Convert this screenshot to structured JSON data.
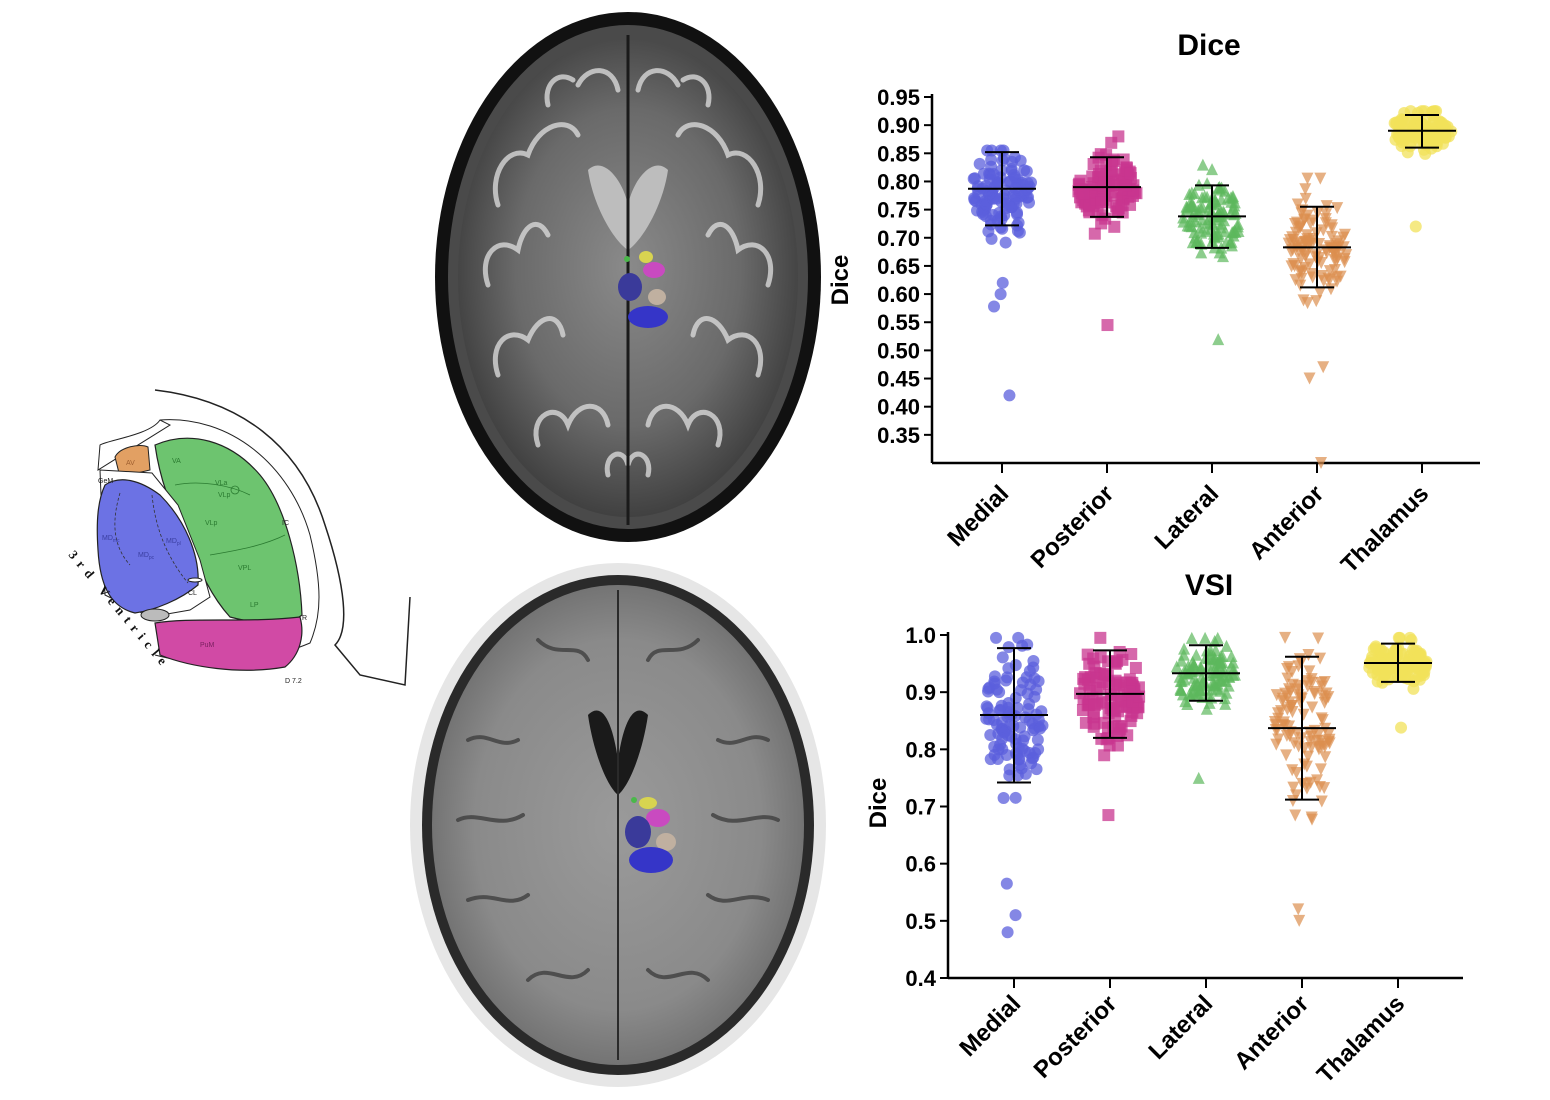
{
  "atlas": {
    "labels": {
      "AV": "AV",
      "VA": "VA",
      "VLa": "VLa",
      "VLp_small": "VLp",
      "GeM": "GeM",
      "IC": "IC",
      "MD": "MD",
      "mc": "mc",
      "pl": "pl",
      "pc": "pc",
      "VLp": "VLp",
      "VPL": "VPL",
      "CL": "CL",
      "LP": "LP",
      "R": "R",
      "PuM": "PuM",
      "D": "D 7.2",
      "ventricle": "3rd Ventricle"
    },
    "colors": {
      "medial": "#6b6fe0",
      "lateral": "#5cbf62",
      "anterior": "#e09a5c",
      "posterior": "#cc4aa0"
    }
  },
  "mri": {
    "top": "axial-t2-with-thalamic-overlay",
    "bottom": "axial-t1-with-thalamic-overlay"
  },
  "chart_data": [
    {
      "type": "scatter",
      "title": "Dice",
      "ylabel": "Dice",
      "ylim": [
        0.3,
        0.95
      ],
      "yticks": [
        "0.35",
        "0.40",
        "0.45",
        "0.50",
        "0.55",
        "0.60",
        "0.65",
        "0.70",
        "0.75",
        "0.80",
        "0.85",
        "0.90",
        "0.95"
      ],
      "categories": [
        "Medial",
        "Posterior",
        "Lateral",
        "Anterior",
        "Thalamus"
      ],
      "series": [
        {
          "category": "Medial",
          "color": "#5b5fdc",
          "marker": "circle",
          "mean": 0.787,
          "sd_low": 0.722,
          "sd_high": 0.852,
          "min": 0.42,
          "max": 0.855,
          "outliers": [
            0.42,
            0.578,
            0.6,
            0.62
          ]
        },
        {
          "category": "Posterior",
          "color": "#c8358f",
          "marker": "square",
          "mean": 0.79,
          "sd_low": 0.737,
          "sd_high": 0.843,
          "min": 0.545,
          "max": 0.88,
          "outliers": [
            0.545
          ]
        },
        {
          "category": "Lateral",
          "color": "#5cb85c",
          "marker": "triangle-up",
          "mean": 0.738,
          "sd_low": 0.682,
          "sd_high": 0.793,
          "min": 0.52,
          "max": 0.83,
          "outliers": [
            0.52
          ]
        },
        {
          "category": "Anterior",
          "color": "#dc8f4f",
          "marker": "triangle-down",
          "mean": 0.683,
          "sd_low": 0.612,
          "sd_high": 0.755,
          "min": 0.3,
          "max": 0.805,
          "outliers": [
            0.45,
            0.47,
            0.3
          ]
        },
        {
          "category": "Thalamus",
          "color": "#f2e25a",
          "marker": "circle",
          "mean": 0.89,
          "sd_low": 0.86,
          "sd_high": 0.918,
          "min": 0.72,
          "max": 0.925,
          "outliers": [
            0.72
          ]
        }
      ]
    },
    {
      "type": "scatter",
      "title": "VSI",
      "ylabel": "Dice",
      "ylim": [
        0.4,
        1.0
      ],
      "yticks": [
        "0.4",
        "0.5",
        "0.6",
        "0.7",
        "0.8",
        "0.9",
        "1.0"
      ],
      "categories": [
        "Medial",
        "Posterior",
        "Lateral",
        "Anterior",
        "Thalamus"
      ],
      "series": [
        {
          "category": "Medial",
          "color": "#5b5fdc",
          "marker": "circle",
          "mean": 0.86,
          "sd_low": 0.742,
          "sd_high": 0.977,
          "min": 0.48,
          "max": 0.995,
          "outliers": [
            0.48,
            0.51,
            0.565
          ]
        },
        {
          "category": "Posterior",
          "color": "#c8358f",
          "marker": "square",
          "mean": 0.897,
          "sd_low": 0.82,
          "sd_high": 0.973,
          "min": 0.685,
          "max": 0.995,
          "outliers": [
            0.685
          ]
        },
        {
          "category": "Lateral",
          "color": "#5cb85c",
          "marker": "triangle-up",
          "mean": 0.933,
          "sd_low": 0.885,
          "sd_high": 0.982,
          "min": 0.75,
          "max": 0.995,
          "outliers": [
            0.75
          ]
        },
        {
          "category": "Anterior",
          "color": "#dc8f4f",
          "marker": "triangle-down",
          "mean": 0.837,
          "sd_low": 0.712,
          "sd_high": 0.962,
          "min": 0.5,
          "max": 0.995,
          "outliers": [
            0.5,
            0.52
          ]
        },
        {
          "category": "Thalamus",
          "color": "#f2e25a",
          "marker": "circle",
          "mean": 0.951,
          "sd_low": 0.918,
          "sd_high": 0.985,
          "min": 0.838,
          "max": 0.995,
          "outliers": [
            0.838
          ]
        }
      ]
    }
  ]
}
